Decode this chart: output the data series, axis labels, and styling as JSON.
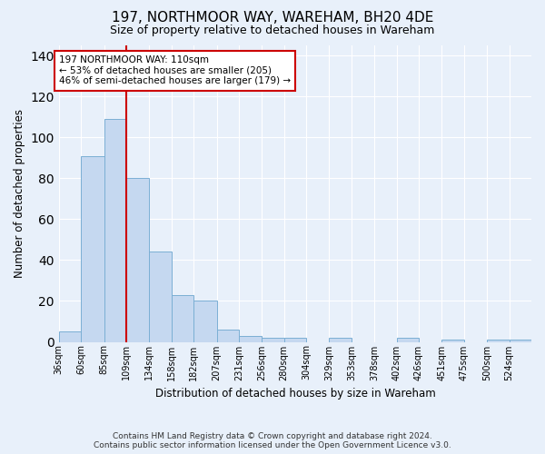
{
  "title": "197, NORTHMOOR WAY, WAREHAM, BH20 4DE",
  "subtitle": "Size of property relative to detached houses in Wareham",
  "xlabel": "Distribution of detached houses by size in Wareham",
  "ylabel": "Number of detached properties",
  "bar_color": "#c5d8f0",
  "bar_edge_color": "#7bafd4",
  "background_color": "#e8f0fa",
  "grid_color": "#ffffff",
  "bins": [
    36,
    60,
    85,
    109,
    134,
    158,
    182,
    207,
    231,
    256,
    280,
    304,
    329,
    353,
    378,
    402,
    426,
    451,
    475,
    500,
    524,
    548
  ],
  "values": [
    5,
    91,
    109,
    80,
    44,
    23,
    20,
    6,
    3,
    2,
    2,
    0,
    2,
    0,
    0,
    2,
    0,
    1,
    0,
    1,
    1
  ],
  "tick_labels": [
    "36sqm",
    "60sqm",
    "85sqm",
    "109sqm",
    "134sqm",
    "158sqm",
    "182sqm",
    "207sqm",
    "231sqm",
    "256sqm",
    "280sqm",
    "304sqm",
    "329sqm",
    "353sqm",
    "378sqm",
    "402sqm",
    "426sqm",
    "451sqm",
    "475sqm",
    "500sqm",
    "524sqm"
  ],
  "red_line_x": 109,
  "annotation_text": "197 NORTHMOOR WAY: 110sqm\n← 53% of detached houses are smaller (205)\n46% of semi-detached houses are larger (179) →",
  "annotation_box_color": "#ffffff",
  "annotation_border_color": "#cc0000",
  "vline_color": "#cc0000",
  "ylim": [
    0,
    145
  ],
  "yticks": [
    0,
    20,
    40,
    60,
    80,
    100,
    120,
    140
  ],
  "footnote": "Contains HM Land Registry data © Crown copyright and database right 2024.\nContains public sector information licensed under the Open Government Licence v3.0."
}
